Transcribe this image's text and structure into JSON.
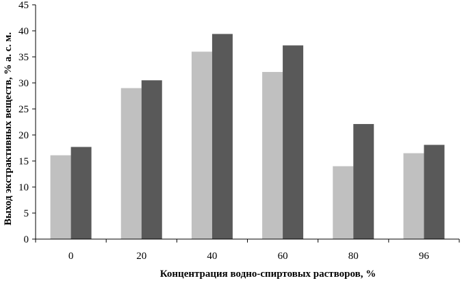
{
  "chart_data": {
    "type": "bar",
    "title": "",
    "xlabel": "Концентрация водно-спиртовых растворов, %",
    "ylabel": "Выход экстрактивных веществ, % а. с. м.",
    "categories": [
      "0",
      "20",
      "40",
      "60",
      "80",
      "96"
    ],
    "ylim": [
      0,
      45
    ],
    "yticks": [
      "0",
      "5",
      "10",
      "15",
      "20",
      "25",
      "30",
      "35",
      "40",
      "45"
    ],
    "grid": false,
    "legend": "none",
    "series": [
      {
        "values": [
          16.1,
          29.0,
          36.0,
          32.1,
          14.0,
          16.5
        ],
        "color": "#c0c0c0"
      },
      {
        "values": [
          17.7,
          30.5,
          39.4,
          37.2,
          22.1,
          18.1
        ],
        "color": "#595959"
      }
    ]
  }
}
